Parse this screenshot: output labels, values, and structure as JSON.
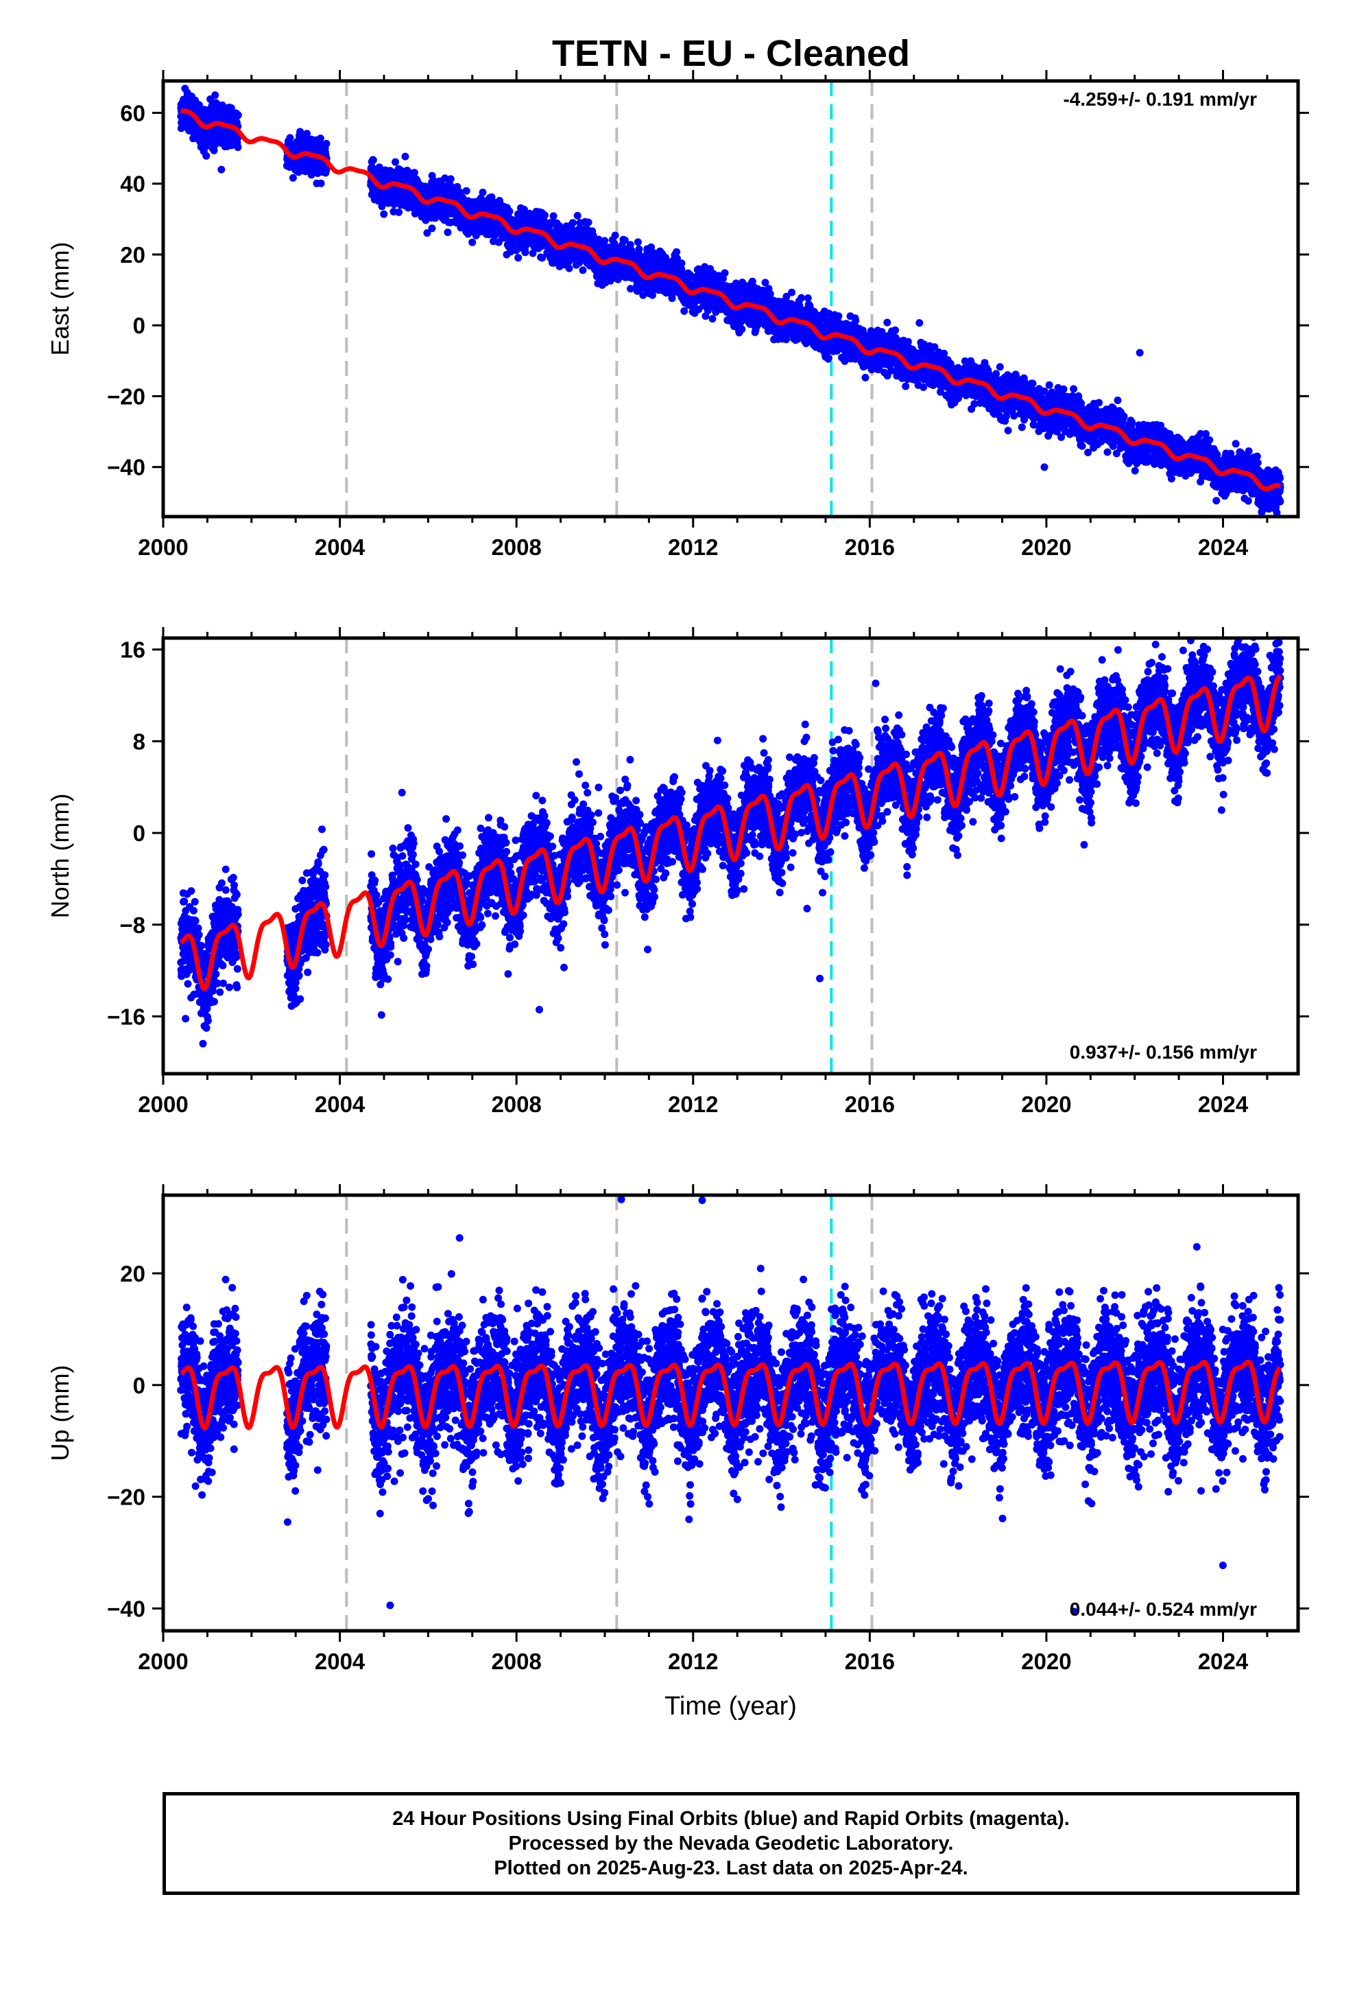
{
  "title": "TETN  - EU - Cleaned",
  "footer": {
    "line1": "24 Hour Positions Using Final Orbits (blue) and Rapid Orbits (magenta).",
    "line2": "Processed by the Nevada Geodetic Laboratory.",
    "line3": "Plotted on 2025-Aug-23. Last data on 2025-Apr-24."
  },
  "colors": {
    "data_points": "#0000ff",
    "model_line": "#ff0000",
    "equipment_change_line": "#bdbdbd",
    "earthquake_line": "#00e5e5",
    "frame": "#000000"
  },
  "chart_data": [
    {
      "type": "scatter",
      "component": "east",
      "ylabel": "East (mm)",
      "xlim": [
        2000,
        2025.7
      ],
      "ylim": [
        -54,
        69
      ],
      "x_ticks": [
        2000,
        2004,
        2008,
        2012,
        2016,
        2020,
        2024
      ],
      "y_ticks": [
        -40,
        -20,
        0,
        20,
        40,
        60
      ],
      "rate_text": "-4.259+/- 0.191 mm/yr",
      "rate_position": "top-right",
      "series": [
        {
          "name": "",
          "style": "points",
          "color": "#0000ff",
          "x_range": [
            2000.4,
            2025.3
          ],
          "trend_mm_per_yr": -4.259,
          "value_at_2000_4": 60,
          "annual_amplitude": 1.2,
          "scatter_sd": 2.6,
          "gaps": [
            [
              2001.7,
              2002.8
            ],
            [
              2003.7,
              2004.7
            ]
          ]
        },
        {
          "name": "",
          "style": "line",
          "color": "#ff0000"
        }
      ],
      "vertical_lines": [
        {
          "x": 2004.15,
          "kind": "equipment",
          "color": "#bdbdbd"
        },
        {
          "x": 2010.27,
          "kind": "equipment",
          "color": "#bdbdbd"
        },
        {
          "x": 2015.13,
          "kind": "earthquake",
          "color": "#00e5e5"
        },
        {
          "x": 2016.05,
          "kind": "equipment",
          "color": "#bdbdbd"
        }
      ]
    },
    {
      "type": "scatter",
      "component": "north",
      "ylabel": "North (mm)",
      "xlim": [
        2000,
        2025.7
      ],
      "ylim": [
        -21,
        17
      ],
      "x_ticks": [
        2000,
        2004,
        2008,
        2012,
        2016,
        2020,
        2024
      ],
      "y_ticks": [
        -16,
        -8,
        0,
        8,
        16
      ],
      "rate_text": "0.937+/- 0.156 mm/yr",
      "rate_position": "bottom-right",
      "series": [
        {
          "name": "",
          "style": "points",
          "color": "#0000ff",
          "x_range": [
            2000.4,
            2025.3
          ],
          "trend_mm_per_yr": 0.937,
          "value_at_2000_4": -11,
          "annual_amplitude": 2.3,
          "scatter_sd": 1.8,
          "gaps": [
            [
              2001.7,
              2002.8
            ],
            [
              2003.7,
              2004.7
            ]
          ]
        },
        {
          "name": "",
          "style": "line",
          "color": "#ff0000"
        }
      ],
      "vertical_lines": [
        {
          "x": 2004.15,
          "kind": "equipment",
          "color": "#bdbdbd"
        },
        {
          "x": 2010.27,
          "kind": "equipment",
          "color": "#bdbdbd"
        },
        {
          "x": 2015.13,
          "kind": "earthquake",
          "color": "#00e5e5"
        },
        {
          "x": 2016.05,
          "kind": "equipment",
          "color": "#bdbdbd"
        }
      ]
    },
    {
      "type": "scatter",
      "component": "up",
      "ylabel": "Up (mm)",
      "xlim": [
        2000,
        2025.7
      ],
      "ylim": [
        -44,
        34
      ],
      "x_ticks": [
        2000,
        2004,
        2008,
        2012,
        2016,
        2020,
        2024
      ],
      "y_ticks": [
        -40,
        -20,
        0,
        20
      ],
      "xlabel": "Time (year)",
      "rate_text": "0.044+/- 0.524 mm/yr",
      "rate_position": "bottom-right",
      "series": [
        {
          "name": "",
          "style": "points",
          "color": "#0000ff",
          "x_range": [
            2000.4,
            2025.3
          ],
          "trend_mm_per_yr": 0.044,
          "value_at_2000_4": -1,
          "annual_amplitude": 5.0,
          "scatter_sd": 5.5,
          "gaps": [
            [
              2001.7,
              2002.8
            ],
            [
              2003.7,
              2004.7
            ]
          ]
        },
        {
          "name": "",
          "style": "line",
          "color": "#ff0000"
        }
      ],
      "vertical_lines": [
        {
          "x": 2004.15,
          "kind": "equipment",
          "color": "#bdbdbd"
        },
        {
          "x": 2010.27,
          "kind": "equipment",
          "color": "#bdbdbd"
        },
        {
          "x": 2015.13,
          "kind": "earthquake",
          "color": "#00e5e5"
        },
        {
          "x": 2016.05,
          "kind": "equipment",
          "color": "#bdbdbd"
        }
      ]
    }
  ]
}
